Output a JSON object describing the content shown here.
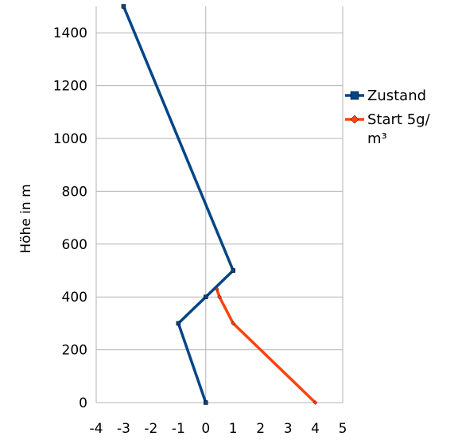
{
  "chart_data": {
    "type": "line",
    "title": "",
    "xlabel": "",
    "ylabel": "Höhe in m",
    "xlim": [
      -4,
      5
    ],
    "ylim": [
      0,
      1500
    ],
    "x_ticks": [
      -4,
      -3,
      -2,
      -1,
      0,
      1,
      2,
      3,
      4,
      5
    ],
    "y_ticks": [
      0,
      200,
      400,
      600,
      800,
      1000,
      1200,
      1400
    ],
    "grid": true,
    "legend_position": "right",
    "series": [
      {
        "name": "Zustand",
        "color": "#004586",
        "marker": "square",
        "points": [
          [
            0,
            0
          ],
          [
            -1,
            300
          ],
          [
            0,
            400
          ],
          [
            1,
            500
          ],
          [
            -3,
            1500
          ]
        ]
      },
      {
        "name": "Start 5g/m³",
        "color": "#ff420e",
        "marker": "diamond",
        "points": [
          [
            4,
            0
          ],
          [
            1,
            300
          ],
          [
            0.5,
            400
          ],
          [
            0.4,
            430
          ]
        ]
      }
    ]
  }
}
